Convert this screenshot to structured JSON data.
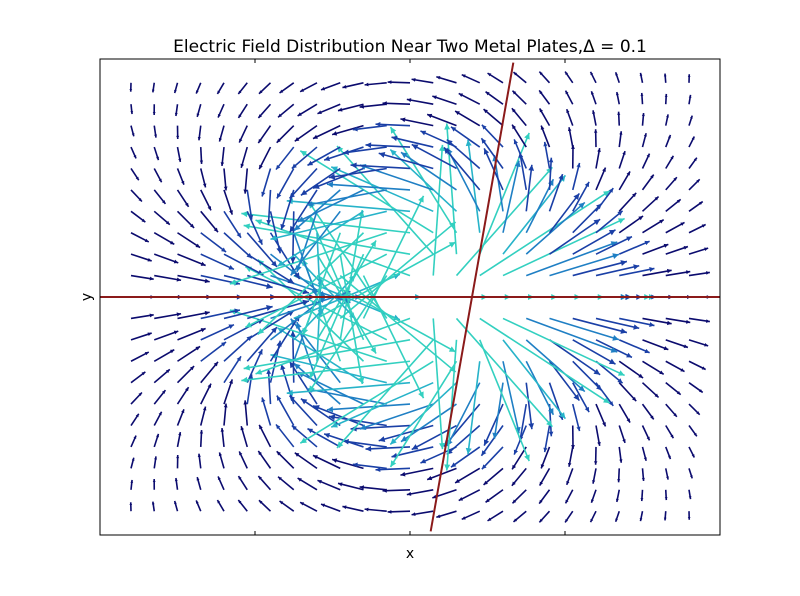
{
  "chart_data": {
    "type": "quiver",
    "title": "Electric Field Distribution Near Two Metal Plates,Δ = 0.1",
    "xlabel": "x",
    "ylabel": "y",
    "xlim": [
      -1,
      1
    ],
    "ylim": [
      -1,
      1
    ],
    "grid": false,
    "x_ticks_labeled": false,
    "y_ticks_labeled": false,
    "grid_nx": 25,
    "grid_ny": 21,
    "delta": 0.1,
    "plates": [
      {
        "name": "vertical-plate",
        "x": [
          0.2,
          0.2
        ],
        "y": [
          -1,
          1
        ],
        "rotation_deg": 10
      },
      {
        "name": "horizontal-plate",
        "x": [
          -1,
          1
        ],
        "y": [
          0,
          0
        ],
        "rotation_deg": 0
      }
    ],
    "plate_color": "#8b1a1a",
    "arrow_colors": [
      "#0b0b6e",
      "#1a3fa6",
      "#1f7fc4",
      "#27b3c9",
      "#33d0c0"
    ]
  }
}
